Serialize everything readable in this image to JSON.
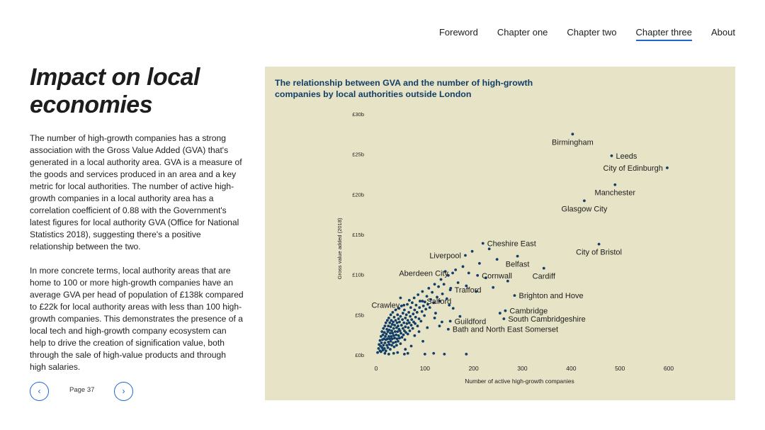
{
  "nav": {
    "items": [
      {
        "label": "Foreword",
        "active": false
      },
      {
        "label": "Chapter one",
        "active": false
      },
      {
        "label": "Chapter two",
        "active": false
      },
      {
        "label": "Chapter three",
        "active": true
      },
      {
        "label": "About",
        "active": false
      }
    ]
  },
  "article": {
    "title": "Impact on local economies",
    "paragraphs": [
      "The number of high-growth companies has a strong association with the Gross Value Added (GVA) that's generated in a local authority area. GVA is a measure of the goods and services produced in an area and a key metric for local authorities. The number of active high-growth companies in a local authority area has a correlation coefficient of 0.88 with the Government's latest figures for local authority GVA (Office for National Statistics 2018), suggesting there's a positive relationship between the two.",
      "In more concrete terms, local authority areas that are home to 100 or more high-growth companies have an average GVA per head of population of £138k compared to £22k for local authority areas with less than 100 high-growth companies. This demonstrates the presence of a local tech and high-growth company ecosystem can help to drive the creation of signification value, both through the sale of high-value products and through high salaries."
    ]
  },
  "pager": {
    "prev_icon": "chevron-left-icon",
    "next_icon": "chevron-right-icon",
    "page_label": "Page 37"
  },
  "colors": {
    "panel_bg": "#e7e3c6",
    "dot": "#123f68",
    "accent": "#1e66c8"
  },
  "chart_data": {
    "type": "scatter",
    "title": "The relationship between GVA and the number of high-growth companies by local authorities outside London",
    "xlabel": "Number of active high-growth companies",
    "ylabel": "Gross value added (2018)",
    "xlim": [
      0,
      600
    ],
    "ylim": [
      0,
      30
    ],
    "x_ticks": [
      0,
      100,
      200,
      300,
      400,
      500,
      600
    ],
    "y_ticks": [
      {
        "value": 0,
        "label": "£0b"
      },
      {
        "value": 5,
        "label": "£5b"
      },
      {
        "value": 10,
        "label": "£10b"
      },
      {
        "value": 15,
        "label": "£15b"
      },
      {
        "value": 20,
        "label": "£20b"
      },
      {
        "value": 25,
        "label": "£25b"
      },
      {
        "value": 30,
        "label": "£30b"
      }
    ],
    "grid": false,
    "labeled_points": [
      {
        "name": "Birmingham",
        "x": 403,
        "y": 27.5,
        "label_pos": "below"
      },
      {
        "name": "Leeds",
        "x": 483,
        "y": 24.8,
        "label_pos": "right"
      },
      {
        "name": "City of Edinburgh",
        "x": 597,
        "y": 23.3,
        "label_pos": "left"
      },
      {
        "name": "Manchester",
        "x": 490,
        "y": 21.2,
        "label_pos": "below"
      },
      {
        "name": "Glasgow City",
        "x": 427,
        "y": 19.2,
        "label_pos": "below"
      },
      {
        "name": "City of Bristol",
        "x": 457,
        "y": 13.8,
        "label_pos": "below"
      },
      {
        "name": "Cheshire East",
        "x": 219,
        "y": 13.9,
        "label_pos": "right"
      },
      {
        "name": "Liverpool",
        "x": 183,
        "y": 12.4,
        "label_pos": "left"
      },
      {
        "name": "Belfast",
        "x": 290,
        "y": 12.3,
        "label_pos": "below"
      },
      {
        "name": "Cardiff",
        "x": 344,
        "y": 10.8,
        "label_pos": "below"
      },
      {
        "name": "Cornwall",
        "x": 208,
        "y": 9.9,
        "label_pos": "right"
      },
      {
        "name": "Aberdeen City",
        "x": 157,
        "y": 10.2,
        "label_pos": "left"
      },
      {
        "name": "Trafford",
        "x": 152,
        "y": 8.1,
        "label_pos": "right"
      },
      {
        "name": "Brighton and Hove",
        "x": 284,
        "y": 7.4,
        "label_pos": "right"
      },
      {
        "name": "Salford",
        "x": 95,
        "y": 6.7,
        "label_pos": "right"
      },
      {
        "name": "Cambridge",
        "x": 265,
        "y": 5.5,
        "label_pos": "right"
      },
      {
        "name": "Crawley",
        "x": 57,
        "y": 6.2,
        "label_pos": "left"
      },
      {
        "name": "South Cambridgeshire",
        "x": 262,
        "y": 4.5,
        "label_pos": "right"
      },
      {
        "name": "Guildford",
        "x": 152,
        "y": 4.2,
        "label_pos": "right"
      },
      {
        "name": "Bath and North East Somerset",
        "x": 148,
        "y": 3.2,
        "label_pos": "right"
      }
    ],
    "other_points": [
      [
        3,
        0.3
      ],
      [
        5,
        0.8
      ],
      [
        6,
        1.3
      ],
      [
        8,
        0.5
      ],
      [
        8,
        1.8
      ],
      [
        9,
        1.1
      ],
      [
        10,
        0.4
      ],
      [
        10,
        2.3
      ],
      [
        11,
        1.5
      ],
      [
        12,
        0.9
      ],
      [
        12,
        2.9
      ],
      [
        13,
        1.9
      ],
      [
        14,
        0.6
      ],
      [
        14,
        2.5
      ],
      [
        15,
        1.2
      ],
      [
        15,
        3.3
      ],
      [
        16,
        2.0
      ],
      [
        17,
        0.8
      ],
      [
        17,
        2.8
      ],
      [
        18,
        1.5
      ],
      [
        18,
        3.6
      ],
      [
        19,
        2.3
      ],
      [
        20,
        0.5
      ],
      [
        20,
        1.9
      ],
      [
        20,
        4.0
      ],
      [
        21,
        2.6
      ],
      [
        22,
        1.2
      ],
      [
        22,
        3.2
      ],
      [
        23,
        2.0
      ],
      [
        23,
        4.3
      ],
      [
        24,
        0.9
      ],
      [
        24,
        2.9
      ],
      [
        25,
        1.6
      ],
      [
        25,
        3.6
      ],
      [
        26,
        2.3
      ],
      [
        26,
        4.6
      ],
      [
        27,
        1.3
      ],
      [
        27,
        3.1
      ],
      [
        28,
        2.0
      ],
      [
        28,
        4.0
      ],
      [
        29,
        0.7
      ],
      [
        29,
        2.7
      ],
      [
        30,
        1.7
      ],
      [
        30,
        3.5
      ],
      [
        30,
        5.0
      ],
      [
        31,
        2.3
      ],
      [
        31,
        4.3
      ],
      [
        32,
        1.2
      ],
      [
        32,
        3.0
      ],
      [
        33,
        2.0
      ],
      [
        33,
        3.8
      ],
      [
        34,
        2.7
      ],
      [
        34,
        5.3
      ],
      [
        35,
        1.5
      ],
      [
        35,
        4.1
      ],
      [
        36,
        2.4
      ],
      [
        36,
        3.3
      ],
      [
        37,
        1.0
      ],
      [
        37,
        4.7
      ],
      [
        38,
        2.1
      ],
      [
        38,
        3.7
      ],
      [
        39,
        2.9
      ],
      [
        40,
        1.6
      ],
      [
        40,
        4.3
      ],
      [
        40,
        5.6
      ],
      [
        41,
        2.5
      ],
      [
        42,
        3.4
      ],
      [
        42,
        1.2
      ],
      [
        43,
        4.0
      ],
      [
        43,
        2.0
      ],
      [
        44,
        5.0
      ],
      [
        44,
        2.9
      ],
      [
        45,
        3.6
      ],
      [
        45,
        1.7
      ],
      [
        46,
        4.5
      ],
      [
        46,
        2.4
      ],
      [
        47,
        3.2
      ],
      [
        47,
        5.8
      ],
      [
        48,
        2.1
      ],
      [
        48,
        4.1
      ],
      [
        49,
        3.0
      ],
      [
        50,
        1.4
      ],
      [
        50,
        4.8
      ],
      [
        51,
        2.7
      ],
      [
        52,
        3.7
      ],
      [
        52,
        6.1
      ],
      [
        53,
        2.2
      ],
      [
        54,
        4.4
      ],
      [
        55,
        3.3
      ],
      [
        55,
        5.2
      ],
      [
        56,
        2.5
      ],
      [
        57,
        4.0
      ],
      [
        58,
        3.0
      ],
      [
        58,
        5.6
      ],
      [
        59,
        1.9
      ],
      [
        60,
        4.6
      ],
      [
        60,
        3.5
      ],
      [
        61,
        2.8
      ],
      [
        62,
        5.0
      ],
      [
        63,
        3.9
      ],
      [
        64,
        6.3
      ],
      [
        65,
        2.6
      ],
      [
        65,
        4.3
      ],
      [
        66,
        3.4
      ],
      [
        67,
        5.3
      ],
      [
        68,
        4.0
      ],
      [
        68,
        6.8
      ],
      [
        69,
        3.0
      ],
      [
        70,
        4.8
      ],
      [
        71,
        5.9
      ],
      [
        72,
        3.7
      ],
      [
        73,
        4.4
      ],
      [
        74,
        6.5
      ],
      [
        75,
        3.3
      ],
      [
        76,
        5.1
      ],
      [
        77,
        4.1
      ],
      [
        78,
        7.1
      ],
      [
        79,
        5.6
      ],
      [
        80,
        3.9
      ],
      [
        81,
        4.7
      ],
      [
        82,
        6.2
      ],
      [
        84,
        5.3
      ],
      [
        85,
        3.6
      ],
      [
        86,
        7.5
      ],
      [
        88,
        4.5
      ],
      [
        89,
        5.9
      ],
      [
        90,
        6.7
      ],
      [
        92,
        4.2
      ],
      [
        94,
        5.4
      ],
      [
        95,
        7.9
      ],
      [
        97,
        6.1
      ],
      [
        99,
        4.9
      ],
      [
        100,
        6.6
      ],
      [
        102,
        5.7
      ],
      [
        104,
        7.3
      ],
      [
        106,
        6.3
      ],
      [
        108,
        8.3
      ],
      [
        110,
        5.9
      ],
      [
        112,
        6.9
      ],
      [
        115,
        7.8
      ],
      [
        118,
        6.5
      ],
      [
        120,
        8.8
      ],
      [
        122,
        5.2
      ],
      [
        125,
        7.2
      ],
      [
        128,
        8.5
      ],
      [
        130,
        6.7
      ],
      [
        133,
        9.4
      ],
      [
        136,
        7.6
      ],
      [
        139,
        8.8
      ],
      [
        142,
        10.4
      ],
      [
        145,
        7.0
      ],
      [
        148,
        9.9
      ],
      [
        150,
        6.2
      ],
      [
        153,
        8.3
      ],
      [
        158,
        5.8
      ],
      [
        163,
        10.6
      ],
      [
        168,
        9.0
      ],
      [
        172,
        4.8
      ],
      [
        178,
        11.0
      ],
      [
        185,
        8.6
      ],
      [
        190,
        10.2
      ],
      [
        197,
        12.9
      ],
      [
        205,
        7.9
      ],
      [
        212,
        11.4
      ],
      [
        225,
        9.6
      ],
      [
        232,
        13.2
      ],
      [
        240,
        8.4
      ],
      [
        248,
        11.9
      ],
      [
        254,
        5.2
      ],
      [
        270,
        9.2
      ],
      [
        120,
        4.6
      ],
      [
        130,
        3.6
      ],
      [
        135,
        4.1
      ],
      [
        118,
        0.2
      ],
      [
        140,
        0.1
      ],
      [
        185,
        0.1
      ],
      [
        58,
        0.1
      ],
      [
        65,
        0.2
      ],
      [
        100,
        0.1
      ],
      [
        79,
        2.4
      ],
      [
        88,
        2.9
      ],
      [
        105,
        3.4
      ],
      [
        96,
        1.7
      ],
      [
        72,
        1.1
      ],
      [
        60,
        0.7
      ],
      [
        44,
        0.3
      ],
      [
        36,
        0.2
      ],
      [
        26,
        0.1
      ],
      [
        18,
        0.2
      ],
      [
        50,
        7.1
      ]
    ]
  }
}
